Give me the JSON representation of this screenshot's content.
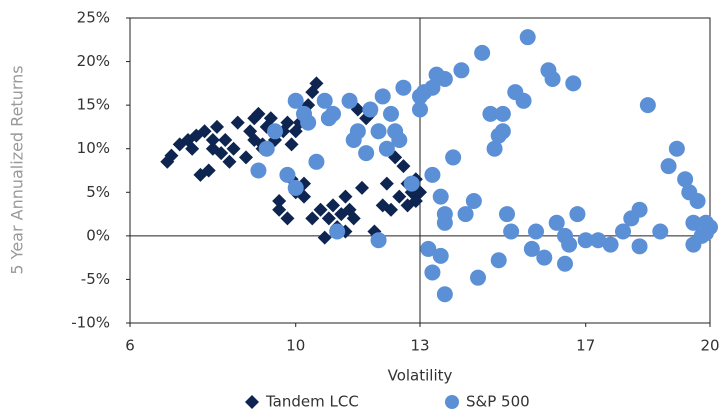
{
  "chart_data": {
    "type": "scatter",
    "x_label": "Volatility",
    "y_label": "5 Year Annualized Returns",
    "xlim": [
      6,
      20
    ],
    "xticks": [
      6,
      10,
      13,
      17,
      20
    ],
    "ylim": [
      -10,
      25
    ],
    "yticks": [
      {
        "value": -10,
        "label": "-10%"
      },
      {
        "value": -5,
        "label": "-5%"
      },
      {
        "value": 0,
        "label": "0%"
      },
      {
        "value": 5,
        "label": "5%"
      },
      {
        "value": 10,
        "label": "10%"
      },
      {
        "value": 15,
        "label": "15%"
      },
      {
        "value": 20,
        "label": "20%"
      },
      {
        "value": 25,
        "label": "25%"
      }
    ],
    "axis_cross": [
      13,
      0
    ],
    "legend": "bottom",
    "series": [
      {
        "name": "Tandem LCC",
        "color": "#0d2550",
        "marker": "diamond",
        "x": [
          6.9,
          7.0,
          7.2,
          7.4,
          7.5,
          7.6,
          7.7,
          7.8,
          7.9,
          8.0,
          8.0,
          8.1,
          8.2,
          8.3,
          8.4,
          8.5,
          8.6,
          8.8,
          8.9,
          9.0,
          9.0,
          9.1,
          9.2,
          9.3,
          9.4,
          9.5,
          9.6,
          9.6,
          9.7,
          9.8,
          9.8,
          9.9,
          9.9,
          10.0,
          10.0,
          10.1,
          10.2,
          10.2,
          10.3,
          10.4,
          10.5,
          10.6,
          10.7,
          10.8,
          10.9,
          11.0,
          11.1,
          11.2,
          11.3,
          11.4,
          11.5,
          11.6,
          11.7,
          11.8,
          11.9,
          12.1,
          12.3,
          12.4,
          12.5,
          12.6,
          12.7,
          12.8,
          12.9,
          12.9,
          13.0,
          12.7,
          12.2,
          11.2,
          10.4,
          9.2
        ],
        "values": [
          8.5,
          9.2,
          10.5,
          11,
          10,
          11.5,
          7,
          12,
          7.5,
          10,
          11,
          12.5,
          9.5,
          11,
          8.5,
          10,
          13,
          9,
          12,
          11,
          13.5,
          14,
          10.5,
          12.5,
          13.5,
          11,
          3,
          4,
          12,
          13,
          2,
          10.5,
          6.5,
          12,
          5,
          13,
          6,
          4.5,
          15,
          16.5,
          17.5,
          3,
          -0.2,
          2,
          3.5,
          1,
          2.5,
          0.5,
          3,
          2,
          14.5,
          5.5,
          13.5,
          14,
          0.5,
          3.5,
          3,
          9,
          4.5,
          8,
          6,
          5,
          4,
          6.5,
          5,
          3.5,
          6,
          4.5,
          2,
          10
        ]
      },
      {
        "name": "S&P 500",
        "color": "#5b8fd6",
        "marker": "circle",
        "x": [
          9.1,
          9.3,
          9.5,
          9.8,
          10.0,
          10.0,
          10.2,
          10.3,
          10.5,
          10.7,
          10.8,
          10.9,
          11.0,
          11.3,
          11.4,
          11.5,
          11.7,
          11.8,
          12.0,
          12.1,
          12.2,
          12.3,
          12.4,
          12.5,
          12.6,
          12.8,
          13.0,
          13.0,
          13.1,
          13.3,
          13.4,
          13.6,
          13.3,
          13.5,
          13.6,
          13.6,
          13.8,
          14.0,
          14.1,
          14.3,
          14.5,
          14.7,
          14.8,
          14.9,
          15.0,
          15.0,
          15.1,
          15.2,
          15.3,
          15.5,
          15.6,
          15.7,
          15.8,
          16.0,
          16.1,
          16.2,
          16.3,
          16.5,
          16.6,
          16.7,
          16.8,
          16.5,
          17.0,
          17.3,
          17.6,
          17.9,
          18.1,
          18.3,
          18.5,
          18.8,
          19.0,
          19.2,
          19.4,
          19.5,
          19.6,
          19.7,
          19.8,
          19.9,
          20.0,
          19.6,
          18.3,
          13.2,
          13.3,
          13.5,
          13.6,
          14.4,
          14.9,
          12.0,
          19.9
        ],
        "values": [
          7.5,
          10,
          12,
          7,
          5.5,
          15.5,
          14,
          13,
          8.5,
          15.5,
          13.5,
          14,
          0.5,
          15.5,
          11,
          12,
          9.5,
          14.5,
          12,
          16,
          10,
          14,
          12,
          11,
          17,
          6,
          16,
          14.5,
          16.5,
          17,
          18.5,
          18,
          7,
          4.5,
          2.5,
          1.5,
          9,
          19,
          2.5,
          4,
          21,
          14,
          10,
          11.5,
          12,
          14,
          2.5,
          0.5,
          16.5,
          15.5,
          22.8,
          -1.5,
          0.5,
          -2.5,
          19,
          18,
          1.5,
          0,
          -1,
          17.5,
          2.5,
          -3.2,
          -0.5,
          -0.5,
          -1,
          0.5,
          2,
          3,
          15,
          0.5,
          8,
          10,
          6.5,
          5,
          1.5,
          4,
          0,
          1.5,
          1,
          -1,
          -1.2,
          -1.5,
          -4.2,
          -2.3,
          -6.7,
          -4.8,
          -2.8,
          -0.5,
          0.3
        ]
      }
    ]
  }
}
